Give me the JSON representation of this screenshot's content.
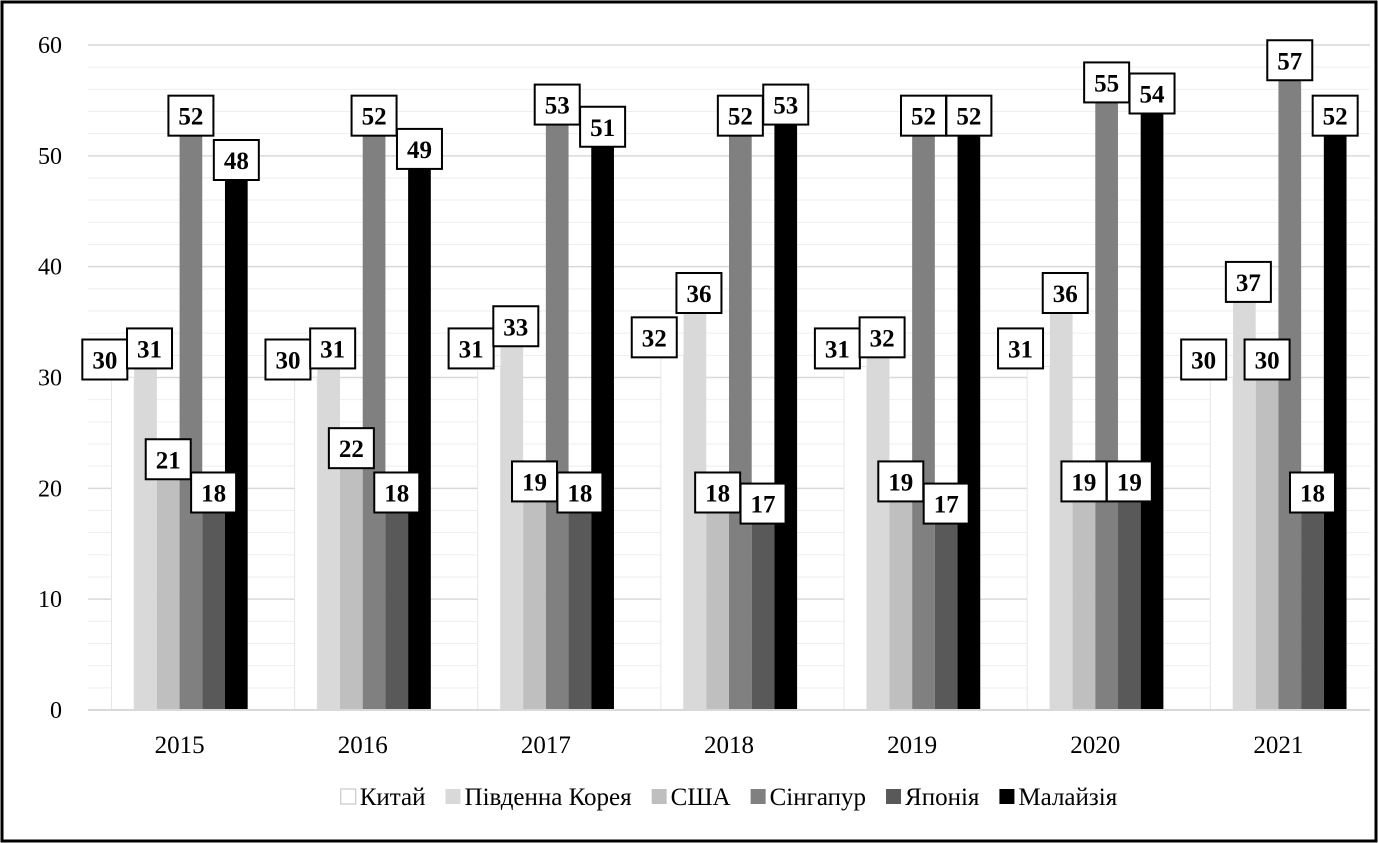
{
  "chart_data": {
    "type": "bar",
    "categories": [
      "2015",
      "2016",
      "2017",
      "2018",
      "2019",
      "2020",
      "2021"
    ],
    "ylim": [
      0,
      60
    ],
    "yticks": [
      0,
      10,
      20,
      30,
      40,
      50,
      60
    ],
    "grid": true,
    "legend_position": "bottom",
    "series": [
      {
        "name": "Китай",
        "color": "#ffffff",
        "values": [
          30,
          30,
          31,
          32,
          31,
          31,
          30
        ]
      },
      {
        "name": "Південна Корея",
        "color": "#d9d9d9",
        "values": [
          31,
          31,
          33,
          36,
          32,
          36,
          37
        ]
      },
      {
        "name": "США",
        "color": "#bfbfbf",
        "values": [
          21,
          22,
          19,
          18,
          19,
          19,
          30
        ]
      },
      {
        "name": "Сінгапур",
        "color": "#808080",
        "values": [
          52,
          52,
          53,
          52,
          52,
          55,
          57
        ]
      },
      {
        "name": "Японія",
        "color": "#595959",
        "values": [
          18,
          18,
          18,
          17,
          17,
          19,
          18
        ]
      },
      {
        "name": "Малайзія",
        "color": "#000000",
        "values": [
          48,
          49,
          51,
          53,
          52,
          54,
          52
        ]
      }
    ]
  }
}
